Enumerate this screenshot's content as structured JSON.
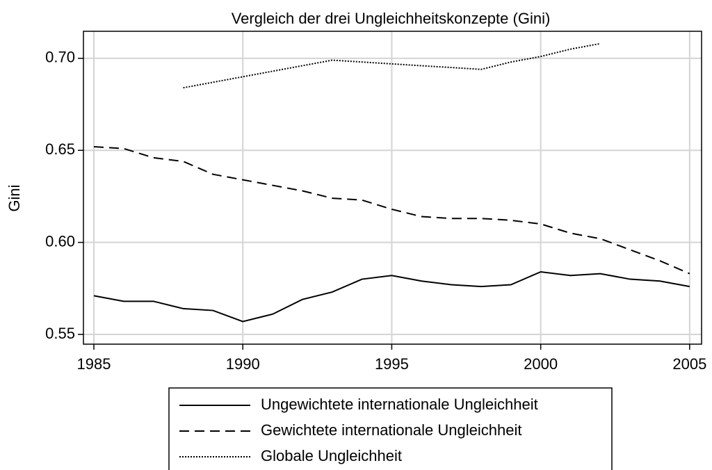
{
  "chart_data": {
    "type": "line",
    "title": "Vergleich der drei Ungleichheitskonzepte (Gini)",
    "y_label": "Gini",
    "x": [
      1985,
      1986,
      1987,
      1988,
      1989,
      1990,
      1991,
      1992,
      1993,
      1994,
      1995,
      1996,
      1997,
      1998,
      1999,
      2000,
      2001,
      2002,
      2003,
      2004,
      2005
    ],
    "series": [
      {
        "name": "Ungewichtete internationale Ungleichheit",
        "color": "#000000",
        "dash": "solid",
        "values": [
          0.571,
          0.568,
          0.568,
          0.564,
          0.563,
          0.557,
          0.561,
          0.569,
          0.573,
          0.58,
          0.582,
          0.579,
          0.577,
          0.576,
          0.577,
          0.584,
          0.582,
          0.583,
          0.58,
          0.579,
          0.576
        ]
      },
      {
        "name": "Gewichtete internationale Ungleichheit",
        "color": "#000000",
        "dash": "dash",
        "values": [
          0.652,
          0.651,
          0.646,
          0.644,
          0.637,
          0.634,
          0.631,
          0.628,
          0.624,
          0.623,
          0.618,
          0.614,
          0.613,
          0.613,
          0.612,
          0.61,
          0.605,
          0.602,
          0.596,
          0.59,
          0.583
        ]
      },
      {
        "name": "Globale Ungleichheit",
        "color": "#000000",
        "dash": "dot",
        "values": [
          null,
          null,
          null,
          0.684,
          0.687,
          0.69,
          0.693,
          0.696,
          0.699,
          0.698,
          0.697,
          0.696,
          0.695,
          0.694,
          0.698,
          0.701,
          0.705,
          0.708,
          null,
          null,
          null
        ]
      }
    ],
    "xlim": [
      1984.65,
      2005.4
    ],
    "xticks": [
      1985,
      1990,
      1995,
      2000,
      2005
    ],
    "ylim": [
      0.5447,
      0.7147
    ],
    "yticks": [
      {
        "value": 0.55,
        "label": "0.55"
      },
      {
        "value": 0.6,
        "label": "0.60"
      },
      0.65,
      {
        "value": 0.7,
        "label": "0.70"
      }
    ],
    "grid": true
  }
}
